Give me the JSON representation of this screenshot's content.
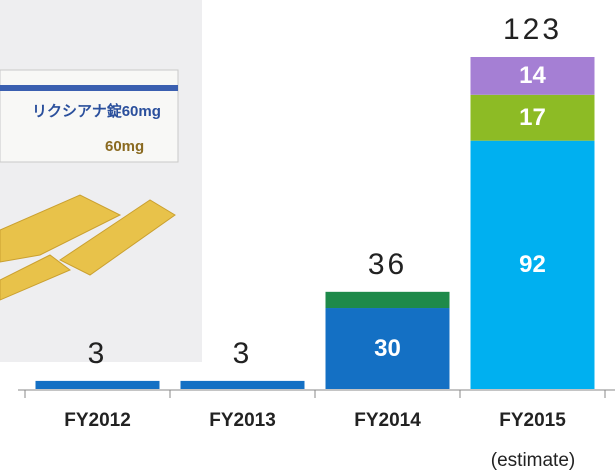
{
  "chart_data": {
    "type": "stacked-bar",
    "categories": [
      "FY2012",
      "FY2013",
      "FY2014",
      "FY2015"
    ],
    "annotation": "(estimate)",
    "series": [
      {
        "color": "#1470c4",
        "values": [
          3,
          3,
          30,
          null
        ]
      },
      {
        "color": "#1e8a4a",
        "values": [
          null,
          null,
          6,
          null
        ]
      },
      {
        "color": "#00b0f0",
        "values": [
          null,
          null,
          null,
          92
        ]
      },
      {
        "color": "#8dbb25",
        "values": [
          null,
          null,
          null,
          17
        ]
      },
      {
        "color": "#a57fd4",
        "values": [
          null,
          null,
          null,
          14
        ]
      }
    ],
    "totals": [
      3,
      3,
      36,
      123
    ],
    "product_box": {
      "name": "リクシアナ錠60mg",
      "dose": "60mg"
    }
  }
}
